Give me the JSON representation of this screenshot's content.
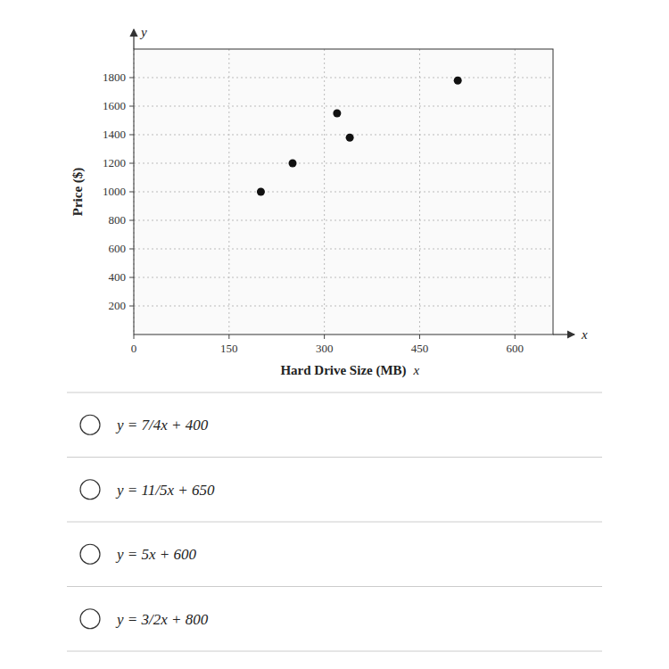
{
  "chart_data": {
    "type": "scatter",
    "x_label": "Hard Drive Size (MB)",
    "y_label": "Price ($)",
    "x": [
      200,
      250,
      320,
      340,
      510
    ],
    "values": [
      1000,
      1200,
      1550,
      1380,
      1780
    ],
    "color": "#111111",
    "xlim": [
      0,
      660
    ],
    "ylim": [
      0,
      2000
    ],
    "xticks": [
      0,
      150,
      300,
      450,
      600
    ],
    "yticks": [
      200,
      400,
      600,
      800,
      1000,
      1200,
      1400,
      1600,
      1800
    ],
    "grid": true,
    "annotations": [
      "y",
      "x",
      "y = 7/4x + 400",
      "y = 11/5x + 650",
      "y = 5x + 600",
      "y = 3/2x + 800"
    ]
  }
}
